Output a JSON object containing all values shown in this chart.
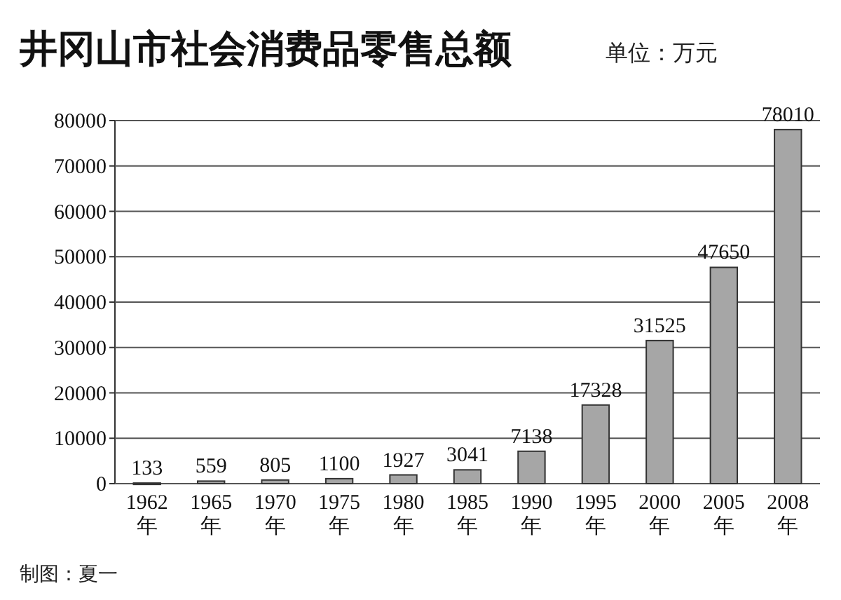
{
  "chart_data": {
    "type": "bar",
    "title": "井冈山市社会消费品零售总额",
    "subtitle": "单位：万元",
    "categories": [
      "1962\n年",
      "1965\n年",
      "1970\n年",
      "1975\n年",
      "1980\n年",
      "1985\n年",
      "1990\n年",
      "1995\n年",
      "2000\n年",
      "2005\n年",
      "2008\n年"
    ],
    "values": [
      133,
      559,
      805,
      1100,
      1927,
      3041,
      7138,
      17328,
      31525,
      47650,
      78010
    ],
    "color": "#a6a6a6",
    "ylim": [
      0,
      80000
    ],
    "yticks": [
      0,
      10000,
      20000,
      30000,
      40000,
      50000,
      60000,
      70000,
      80000
    ],
    "grid": "y",
    "data_labels": true,
    "annotations": [
      "制图：夏一"
    ]
  }
}
